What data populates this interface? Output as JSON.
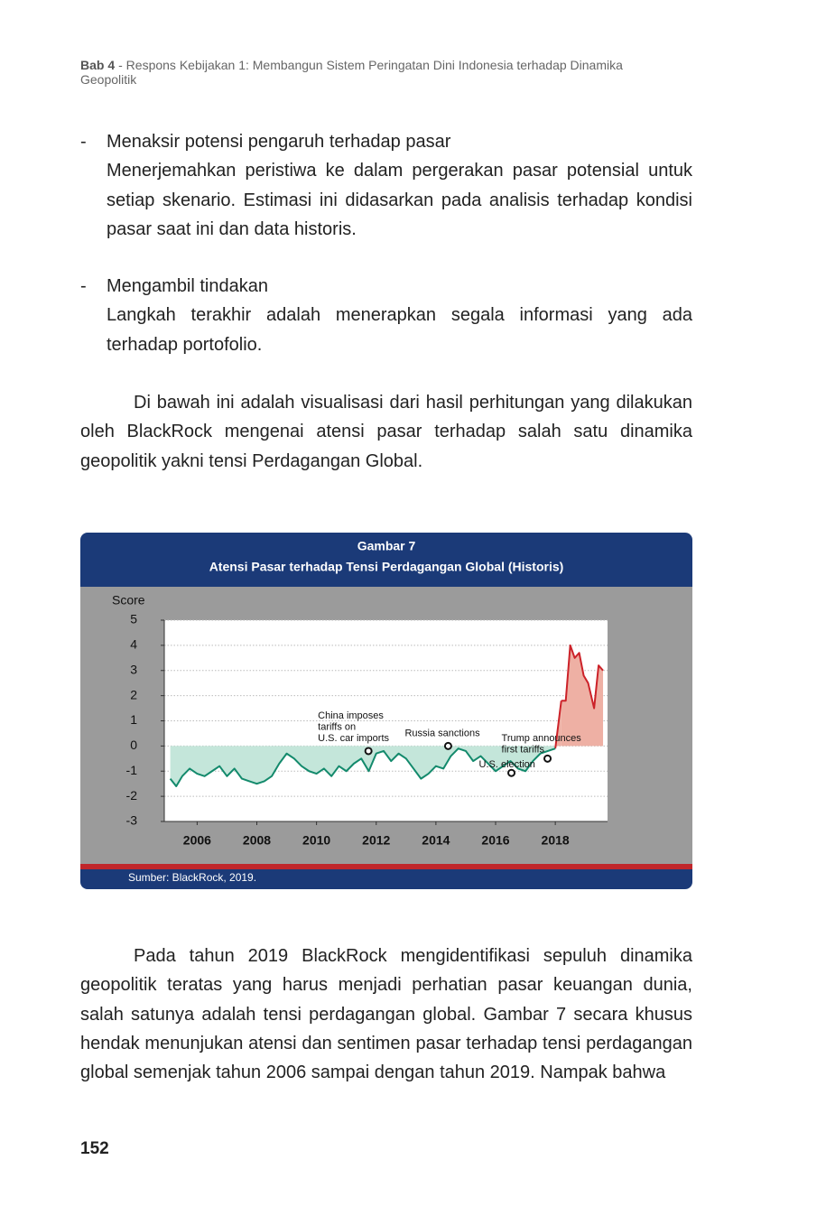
{
  "header": {
    "chapter": "Bab 4",
    "title": "- Respons Kebijakan 1: Membangun Sistem Peringatan Dini Indonesia terhadap Dinamika Geopolitik"
  },
  "bullets": [
    {
      "marker": "-",
      "title": "Menaksir potensi pengaruh terhadap pasar",
      "body": "Menerjemahkan peristiwa ke dalam pergerakan pasar potensial untuk setiap skenario. Estimasi ini didasarkan pada analisis terhadap kondisi pasar saat ini dan data historis."
    },
    {
      "marker": "-",
      "title": "Mengambil tindakan",
      "body": "Langkah terakhir adalah menerapkan segala informasi yang ada terhadap portofolio."
    }
  ],
  "paragraphs": [
    "Di bawah ini adalah visualisasi dari hasil perhitungan yang dilakukan oleh BlackRock mengenai atensi pasar terhadap salah satu dinamika geopolitik yakni tensi Perdagangan Global.",
    "Pada tahun 2019 BlackRock mengidentifikasi sepuluh dinamika geopolitik teratas yang harus menjadi perhatian pasar keuangan dunia, salah satunya adalah tensi perdagangan global. Gambar 7 secara khusus hendak menunjukan atensi dan sentimen pasar terhadap tensi perdagangan global semenjak tahun 2006 sampai dengan tahun 2019. Nampak bahwa"
  ],
  "figure": {
    "label": "Gambar 7",
    "source": "Sumber: BlackRock, 2019."
  },
  "chart_data": {
    "type": "line",
    "title": "Atensi Pasar terhadap Tensi Perdagangan Global (Historis)",
    "y_label": "Score",
    "xlim": [
      2004.9,
      2019.75
    ],
    "ylim": [
      -3,
      5
    ],
    "xticks": [
      2006,
      2008,
      2010,
      2012,
      2014,
      2016,
      2018
    ],
    "yticks": [
      -3,
      -2,
      -1,
      0,
      1,
      2,
      3,
      4,
      5
    ],
    "grid": true,
    "series": [
      {
        "color": "#138a6c",
        "area_color": "#c4e6da",
        "x": [
          2005.1,
          2005.3,
          2005.5,
          2005.75,
          2006.0,
          2006.25,
          2006.5,
          2006.75,
          2007.0,
          2007.25,
          2007.5,
          2007.75,
          2008.0,
          2008.25,
          2008.5,
          2008.75,
          2009.0,
          2009.25,
          2009.5,
          2009.75,
          2010.0,
          2010.25,
          2010.5,
          2010.75,
          2011.0,
          2011.25,
          2011.5,
          2011.75,
          2012.0,
          2012.25,
          2012.5,
          2012.75,
          2013.0,
          2013.25,
          2013.5,
          2013.75,
          2014.0,
          2014.25,
          2014.5,
          2014.75,
          2015.0,
          2015.25,
          2015.5,
          2015.75,
          2016.0,
          2016.25,
          2016.5,
          2016.75,
          2017.0,
          2017.25,
          2017.5,
          2017.75,
          2018.0
        ],
        "values": [
          -1.3,
          -1.6,
          -1.2,
          -0.9,
          -1.1,
          -1.2,
          -1.0,
          -0.8,
          -1.2,
          -0.9,
          -1.3,
          -1.4,
          -1.5,
          -1.4,
          -1.2,
          -0.7,
          -0.3,
          -0.5,
          -0.8,
          -1.0,
          -1.1,
          -0.9,
          -1.2,
          -0.8,
          -1.0,
          -0.7,
          -0.5,
          -1.0,
          -0.3,
          -0.2,
          -0.6,
          -0.3,
          -0.5,
          -0.9,
          -1.3,
          -1.1,
          -0.8,
          -0.9,
          -0.4,
          -0.1,
          -0.2,
          -0.6,
          -0.4,
          -0.7,
          -1.0,
          -0.8,
          -0.6,
          -0.9,
          -1.0,
          -0.6,
          -0.3,
          -0.2,
          -0.1
        ]
      },
      {
        "color": "#cc2229",
        "area_color": "#eeb0a4",
        "x": [
          2018.2,
          2018.35,
          2018.5,
          2018.65,
          2018.8,
          2018.95,
          2019.1,
          2019.3,
          2019.45,
          2019.6
        ],
        "values": [
          1.8,
          1.8,
          4.0,
          3.5,
          3.7,
          2.8,
          2.5,
          1.5,
          3.2,
          3.0
        ]
      }
    ],
    "annotations": [
      {
        "lines": [
          "China imposes",
          "tariffs on",
          "U.S. car imports"
        ],
        "x": 2011.74,
        "y": -0.2
      },
      {
        "lines": [
          "Russia sanctions"
        ],
        "x": 2014.41,
        "y": 0.0
      },
      {
        "lines": [
          "U.S. election"
        ],
        "x": 2016.53,
        "y": -1.07
      },
      {
        "lines": [
          "Trump announces",
          "first tariffs"
        ],
        "x": 2017.74,
        "y": -0.5
      }
    ]
  },
  "page_number": 152
}
